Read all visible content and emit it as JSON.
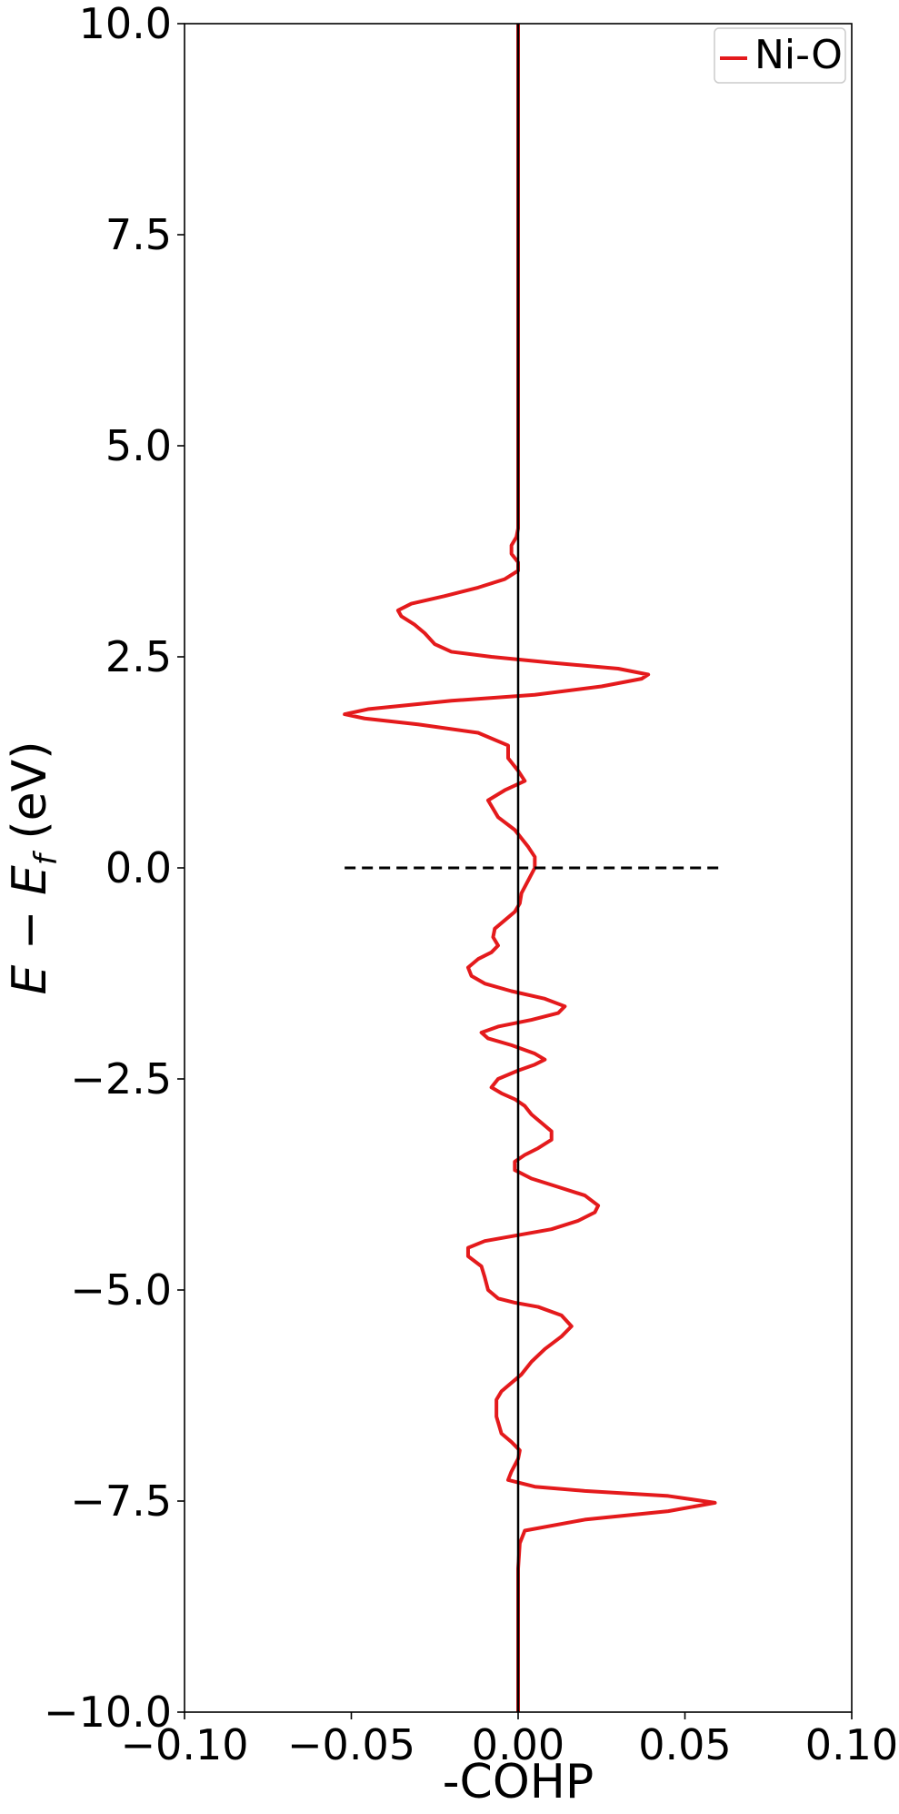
{
  "chart_data": {
    "type": "line",
    "xlabel": "-COHP",
    "ylabel": "E − E",
    "ylabel_sub": "f",
    "ylabel_unit": " (eV)",
    "xlim": [
      -0.1,
      0.1
    ],
    "ylim": [
      -10.0,
      10.0
    ],
    "x_ticks": [
      -0.1,
      -0.05,
      0.0,
      0.05,
      0.1
    ],
    "x_tick_labels": [
      "−0.10",
      "−0.05",
      "0.00",
      "0.05",
      "0.10"
    ],
    "y_ticks": [
      -10.0,
      -7.5,
      -5.0,
      -2.5,
      0.0,
      2.5,
      5.0,
      7.5,
      10.0
    ],
    "y_tick_labels": [
      "−10.0",
      "−7.5",
      "−5.0",
      "−2.5",
      "0.0",
      "2.5",
      "5.0",
      "7.5",
      "10.0"
    ],
    "grid": false,
    "legend_position": "top-right",
    "fermi_line": {
      "y": 0.0,
      "x_range": [
        -0.052,
        0.06
      ],
      "style": "dashed",
      "color": "#000000"
    },
    "zero_line": {
      "x": 0.0,
      "color": "#000000"
    },
    "series": [
      {
        "name": "Ni-O",
        "color": "#e41a1c",
        "points": [
          [
            0.0,
            -10.0
          ],
          [
            0.0,
            -9.0
          ],
          [
            0.0,
            -8.3
          ],
          [
            0.0005,
            -8.0
          ],
          [
            0.002,
            -7.85
          ],
          [
            0.02,
            -7.72
          ],
          [
            0.045,
            -7.62
          ],
          [
            0.059,
            -7.52
          ],
          [
            0.045,
            -7.44
          ],
          [
            0.02,
            -7.38
          ],
          [
            0.005,
            -7.33
          ],
          [
            -0.003,
            -7.25
          ],
          [
            -0.002,
            -7.15
          ],
          [
            0.0,
            -7.0
          ],
          [
            0.0005,
            -6.9
          ],
          [
            -0.002,
            -6.8
          ],
          [
            -0.005,
            -6.7
          ],
          [
            -0.0065,
            -6.5
          ],
          [
            -0.0065,
            -6.3
          ],
          [
            -0.005,
            -6.2
          ],
          [
            -0.002,
            -6.1
          ],
          [
            0.001,
            -6.0
          ],
          [
            0.004,
            -5.85
          ],
          [
            0.008,
            -5.7
          ],
          [
            0.013,
            -5.55
          ],
          [
            0.016,
            -5.43
          ],
          [
            0.013,
            -5.3
          ],
          [
            0.006,
            -5.2
          ],
          [
            -0.001,
            -5.15
          ],
          [
            -0.006,
            -5.1
          ],
          [
            -0.009,
            -5.0
          ],
          [
            -0.01,
            -4.85
          ],
          [
            -0.011,
            -4.72
          ],
          [
            -0.015,
            -4.6
          ],
          [
            -0.015,
            -4.5
          ],
          [
            -0.01,
            -4.42
          ],
          [
            0.0,
            -4.35
          ],
          [
            0.01,
            -4.28
          ],
          [
            0.018,
            -4.18
          ],
          [
            0.023,
            -4.08
          ],
          [
            0.024,
            -4.0
          ],
          [
            0.02,
            -3.88
          ],
          [
            0.012,
            -3.78
          ],
          [
            0.004,
            -3.68
          ],
          [
            -0.001,
            -3.58
          ],
          [
            -0.001,
            -3.48
          ],
          [
            0.002,
            -3.4
          ],
          [
            0.006,
            -3.32
          ],
          [
            0.01,
            -3.22
          ],
          [
            0.01,
            -3.12
          ],
          [
            0.007,
            -3.02
          ],
          [
            0.004,
            -2.92
          ],
          [
            0.002,
            -2.82
          ],
          [
            -0.001,
            -2.74
          ],
          [
            -0.005,
            -2.67
          ],
          [
            -0.008,
            -2.6
          ],
          [
            -0.006,
            -2.5
          ],
          [
            0.0,
            -2.4
          ],
          [
            0.005,
            -2.33
          ],
          [
            0.008,
            -2.27
          ],
          [
            0.005,
            -2.2
          ],
          [
            -0.002,
            -2.1
          ],
          [
            -0.009,
            -2.02
          ],
          [
            -0.011,
            -1.95
          ],
          [
            -0.006,
            -1.88
          ],
          [
            0.004,
            -1.8
          ],
          [
            0.012,
            -1.72
          ],
          [
            0.014,
            -1.64
          ],
          [
            0.008,
            -1.55
          ],
          [
            -0.002,
            -1.46
          ],
          [
            -0.01,
            -1.37
          ],
          [
            -0.014,
            -1.28
          ],
          [
            -0.015,
            -1.18
          ],
          [
            -0.012,
            -1.08
          ],
          [
            -0.008,
            -1.0
          ],
          [
            -0.006,
            -0.92
          ],
          [
            -0.0075,
            -0.82
          ],
          [
            -0.007,
            -0.72
          ],
          [
            -0.004,
            -0.62
          ],
          [
            -0.001,
            -0.52
          ],
          [
            0.0005,
            -0.42
          ],
          [
            0.001,
            -0.3
          ],
          [
            0.003,
            -0.15
          ],
          [
            0.005,
            0.0
          ],
          [
            0.005,
            0.13
          ],
          [
            0.003,
            0.25
          ],
          [
            0.001,
            0.35
          ],
          [
            -0.001,
            0.45
          ],
          [
            -0.006,
            0.6
          ],
          [
            -0.009,
            0.8
          ],
          [
            -0.004,
            0.92
          ],
          [
            0.002,
            1.03
          ],
          [
            0.0,
            1.15
          ],
          [
            -0.003,
            1.3
          ],
          [
            -0.003,
            1.45
          ],
          [
            -0.012,
            1.6
          ],
          [
            -0.03,
            1.7
          ],
          [
            -0.046,
            1.77
          ],
          [
            -0.052,
            1.82
          ],
          [
            -0.045,
            1.88
          ],
          [
            -0.02,
            1.98
          ],
          [
            0.005,
            2.05
          ],
          [
            0.025,
            2.15
          ],
          [
            0.037,
            2.24
          ],
          [
            0.039,
            2.29
          ],
          [
            0.03,
            2.36
          ],
          [
            0.01,
            2.43
          ],
          [
            -0.008,
            2.5
          ],
          [
            -0.02,
            2.56
          ],
          [
            -0.025,
            2.65
          ],
          [
            -0.028,
            2.78
          ],
          [
            -0.031,
            2.88
          ],
          [
            -0.035,
            2.98
          ],
          [
            -0.036,
            3.05
          ],
          [
            -0.032,
            3.13
          ],
          [
            -0.022,
            3.22
          ],
          [
            -0.012,
            3.32
          ],
          [
            -0.004,
            3.42
          ],
          [
            0.0,
            3.52
          ],
          [
            0.0,
            3.62
          ],
          [
            -0.002,
            3.72
          ],
          [
            -0.002,
            3.82
          ],
          [
            -0.0005,
            3.92
          ],
          [
            0.0,
            4.02
          ],
          [
            0.0,
            4.2
          ],
          [
            0.0,
            5.0
          ],
          [
            0.0,
            7.5
          ],
          [
            0.0,
            10.0
          ]
        ]
      }
    ]
  }
}
